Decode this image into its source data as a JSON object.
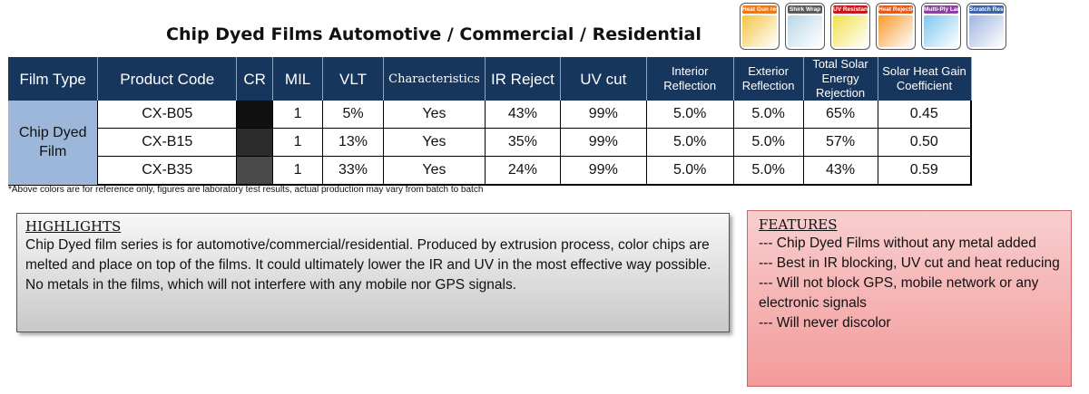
{
  "title": "Chip Dyed Films Automotive / Commercial / Residential",
  "badges": [
    {
      "label": "Heat Gun resistant",
      "color": "#e8791c",
      "art": "#f4c542"
    },
    {
      "label": "Shirk Wrap",
      "color": "#5a5a5a",
      "art": "#b9d7e8"
    },
    {
      "label": "UV Resistant",
      "color": "#c61a1a",
      "art": "#f1e04b"
    },
    {
      "label": "Heat Rejection",
      "color": "#e25a1c",
      "art": "#f79a2a"
    },
    {
      "label": "Multi-Ply Laminated",
      "color": "#8b3fa0",
      "art": "#7fc6ef"
    },
    {
      "label": "Scratch Resistant",
      "color": "#3f63a8",
      "art": "#9fb6e0"
    }
  ],
  "table": {
    "headers": [
      "Film Type",
      "Product Code",
      "CR",
      "MIL",
      "VLT",
      "Characteristics",
      "IR Reject",
      "UV cut",
      "Interior Reflection",
      "Exterior Reflection",
      "Total Solar Energy Rejection",
      "Solar Heat Gain Coefficient"
    ],
    "film_type": "Chip Dyed Film",
    "rows": [
      {
        "code": "CX-B05",
        "cr_color": "#101010",
        "mil": "1",
        "vlt": "5%",
        "char": "Yes",
        "ir": "43%",
        "uv": "99%",
        "int_ref": "5.0%",
        "ext_ref": "5.0%",
        "tser": "65%",
        "shgc": "0.45"
      },
      {
        "code": "CX-B15",
        "cr_color": "#2c2c2c",
        "mil": "1",
        "vlt": "13%",
        "char": "Yes",
        "ir": "35%",
        "uv": "99%",
        "int_ref": "5.0%",
        "ext_ref": "5.0%",
        "tser": "57%",
        "shgc": "0.50"
      },
      {
        "code": "CX-B35",
        "cr_color": "#4a4a4a",
        "mil": "1",
        "vlt": "33%",
        "char": "Yes",
        "ir": "24%",
        "uv": "99%",
        "int_ref": "5.0%",
        "ext_ref": "5.0%",
        "tser": "43%",
        "shgc": "0.59"
      }
    ]
  },
  "note": "*Above colors are for reference only, figures are laboratory test results, actual production may vary from batch to batch",
  "highlights": {
    "heading": "HIGHLIGHTS",
    "body": "Chip Dyed film series is for automotive/commercial/residential. Produced by extrusion process, color chips are melted and place on top of the films. It could ultimately lower the IR and UV in the most effective way possible. No metals in the films, which will not interfere with any mobile nor GPS signals."
  },
  "features": {
    "heading": "FEATURES",
    "items": [
      "--- Chip Dyed Films without any metal added",
      "--- Best in IR blocking, UV cut and heat reducing",
      "--- Will not block GPS, mobile network or any electronic signals",
      "--- Will never discolor"
    ]
  }
}
